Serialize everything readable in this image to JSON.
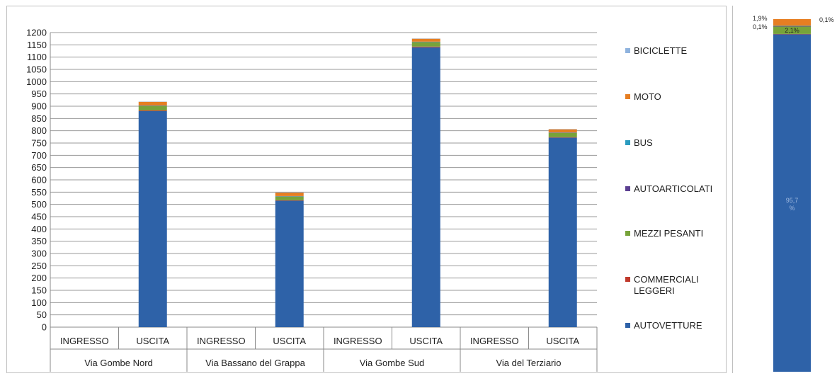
{
  "chart_data": [
    {
      "type": "bar",
      "stacked": true,
      "title": "",
      "xlabel": "",
      "ylabel": "",
      "ylim": [
        0,
        1200
      ],
      "yticks": [
        0,
        50,
        100,
        150,
        200,
        250,
        300,
        350,
        400,
        450,
        500,
        550,
        600,
        650,
        700,
        750,
        800,
        850,
        900,
        950,
        1000,
        1050,
        1100,
        1150,
        1200
      ],
      "grid": true,
      "legend_position": "right",
      "categories": [
        "INGRESSO",
        "USCITA",
        "INGRESSO",
        "USCITA",
        "INGRESSO",
        "USCITA",
        "INGRESSO",
        "USCITA"
      ],
      "groups": [
        "Via Gombe Nord",
        "Via Bassano del Grappa",
        "Via Gombe Sud",
        "Via del Terziario"
      ],
      "series": [
        {
          "name": "AUTOVETTURE",
          "color": "#2e62a8",
          "values": [
            0,
            880,
            0,
            515,
            0,
            1140,
            0,
            772
          ]
        },
        {
          "name": "COMMERCIALI LEGGERI",
          "color": "#c0392b",
          "values": [
            0,
            3,
            0,
            2,
            0,
            3,
            0,
            2
          ]
        },
        {
          "name": "MEZZI PESANTI",
          "color": "#77a33a",
          "values": [
            0,
            18,
            0,
            15,
            0,
            18,
            0,
            17
          ]
        },
        {
          "name": "AUTOARTICOLATI",
          "color": "#5b3f91",
          "values": [
            0,
            1,
            0,
            1,
            0,
            1,
            0,
            1
          ]
        },
        {
          "name": "BUS",
          "color": "#2a9bbf",
          "values": [
            0,
            1,
            0,
            1,
            0,
            1,
            0,
            1
          ]
        },
        {
          "name": "MOTO",
          "color": "#e67e22",
          "values": [
            0,
            15,
            0,
            14,
            0,
            12,
            0,
            13
          ]
        },
        {
          "name": "BICICLETTE",
          "color": "#8fb3de",
          "values": [
            0,
            1,
            0,
            1,
            0,
            1,
            0,
            1
          ]
        }
      ]
    },
    {
      "type": "bar",
      "stacked": true,
      "percent": true,
      "title": "",
      "grid": false,
      "series": [
        {
          "name": "AUTOVETTURE",
          "color": "#2e62a8",
          "value": 95.7,
          "label": "95,7\n%"
        },
        {
          "name": "COMMERCIALI LEGGERI",
          "color": "#c0392b",
          "value": 0.1,
          "label": "0,1%"
        },
        {
          "name": "MEZZI PESANTI",
          "color": "#77a33a",
          "value": 2.1,
          "label": "2,1%"
        },
        {
          "name": "AUTOARTICOLATI",
          "color": "#5b3f91",
          "value": 0.1,
          "label": ""
        },
        {
          "name": "BUS",
          "color": "#2a9bbf",
          "value": 0.1,
          "label": "0,1%"
        },
        {
          "name": "MOTO",
          "color": "#e67e22",
          "value": 1.9,
          "label": "1,9%"
        },
        {
          "name": "BICICLETTE",
          "color": "#8fb3de",
          "value": 0.0,
          "label": ""
        }
      ]
    }
  ],
  "legend": [
    {
      "label": "BICICLETTE",
      "color": "#8fb3de"
    },
    {
      "label": "MOTO",
      "color": "#e67e22"
    },
    {
      "label": "BUS",
      "color": "#2a9bbf"
    },
    {
      "label": "AUTOARTICOLATI",
      "color": "#5b3f91"
    },
    {
      "label": "MEZZI PESANTI",
      "color": "#77a33a"
    },
    {
      "label": "COMMERCIALI\nLEGGERI",
      "color": "#c0392b"
    },
    {
      "label": "AUTOVETTURE",
      "color": "#2e62a8"
    }
  ]
}
